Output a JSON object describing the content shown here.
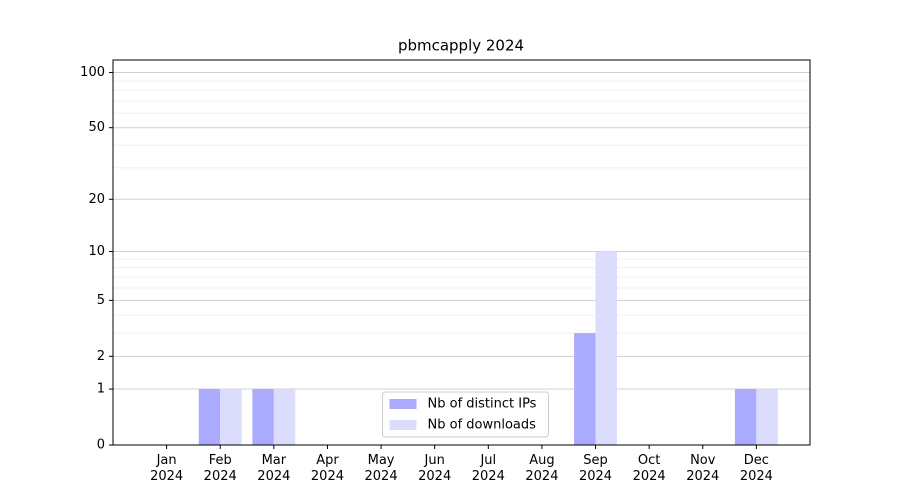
{
  "chart_data": {
    "type": "bar",
    "title": "pbmcapply 2024",
    "categories": [
      "Jan\n2024",
      "Feb\n2024",
      "Mar\n2024",
      "Apr\n2024",
      "May\n2024",
      "Jun\n2024",
      "Jul\n2024",
      "Aug\n2024",
      "Sep\n2024",
      "Oct\n2024",
      "Nov\n2024",
      "Dec\n2024"
    ],
    "series": [
      {
        "name": "Nb of distinct IPs",
        "color": "#aaaaff",
        "values": [
          0,
          1,
          1,
          0,
          0,
          0,
          0,
          0,
          3,
          0,
          0,
          1
        ]
      },
      {
        "name": "Nb of downloads",
        "color": "#dcdcfc",
        "values": [
          0,
          1,
          1,
          0,
          0,
          0,
          0,
          0,
          10,
          0,
          0,
          1
        ]
      }
    ],
    "yscale": "symlog",
    "ylim": [
      0,
      117
    ],
    "yticks": [
      0,
      1,
      2,
      5,
      10,
      20,
      50,
      100
    ],
    "minor_yticks": [
      3,
      4,
      6,
      7,
      8,
      9,
      30,
      40,
      60,
      70,
      80,
      90
    ],
    "grid": true,
    "legend": "lower center"
  }
}
